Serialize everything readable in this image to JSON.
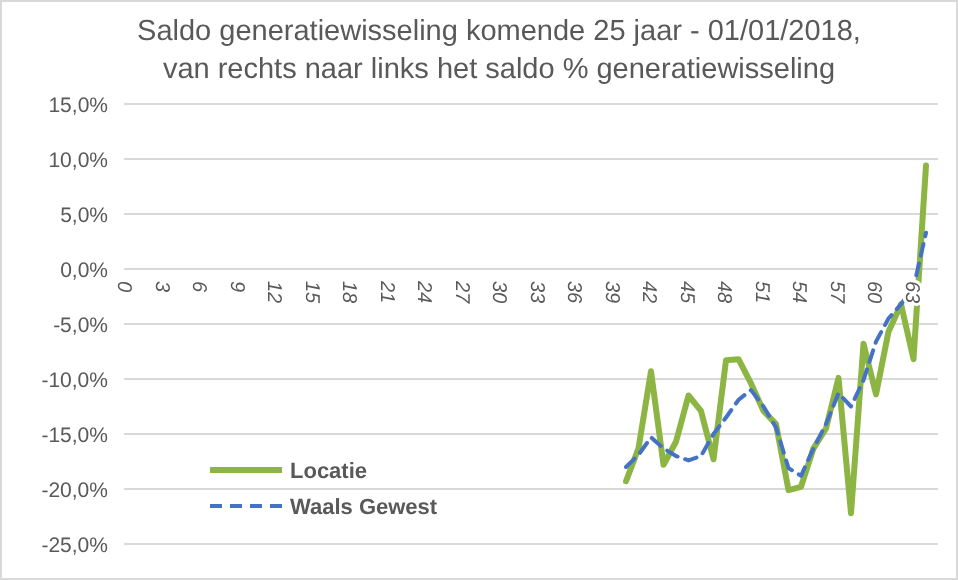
{
  "chart_data": {
    "type": "line",
    "title": "Saldo generatiewisseling komende 25 jaar - 01/01/2018,\nvan rechts naar links  het saldo % generatiewisseling",
    "categories": [
      "0",
      null,
      null,
      "3",
      null,
      null,
      "6",
      null,
      null,
      "9",
      null,
      null,
      "12",
      null,
      null,
      "15",
      null,
      null,
      "18",
      null,
      null,
      "21",
      null,
      null,
      "24",
      null,
      null,
      "27",
      null,
      null,
      "30",
      null,
      null,
      "33",
      null,
      null,
      "36",
      null,
      null,
      "39",
      null,
      null,
      "42",
      null,
      null,
      "45",
      null,
      null,
      "48",
      null,
      null,
      "51",
      null,
      null,
      "54",
      null,
      null,
      "57",
      null,
      null,
      "60",
      null,
      null,
      "63",
      null
    ],
    "series": [
      {
        "name": "Locatie",
        "color": "#8db543",
        "line_style": "solid",
        "values": [
          null,
          null,
          null,
          null,
          null,
          null,
          null,
          null,
          null,
          null,
          null,
          null,
          null,
          null,
          null,
          null,
          null,
          null,
          null,
          null,
          null,
          null,
          null,
          null,
          null,
          null,
          null,
          null,
          null,
          null,
          null,
          null,
          null,
          null,
          null,
          null,
          null,
          null,
          null,
          null,
          -19.3,
          -16.3,
          -9.3,
          -17.8,
          -15.7,
          -11.5,
          -12.9,
          -17.3,
          -8.3,
          -8.2,
          -10.4,
          -12.9,
          -14.1,
          -20.1,
          -19.8,
          -16.3,
          -14.5,
          -9.9,
          -22.2,
          -6.8,
          -11.4,
          -5.7,
          -3.2,
          -8.2,
          9.4
        ]
      },
      {
        "name": "Waals Gewest",
        "color": "#4472c4",
        "line_style": "dashed",
        "values": [
          null,
          null,
          null,
          null,
          null,
          null,
          null,
          null,
          null,
          null,
          null,
          null,
          null,
          null,
          null,
          null,
          null,
          null,
          null,
          null,
          null,
          null,
          null,
          null,
          null,
          null,
          null,
          null,
          null,
          null,
          null,
          null,
          null,
          null,
          null,
          null,
          null,
          null,
          null,
          null,
          -18.0,
          -16.9,
          -15.3,
          -16.3,
          -17.0,
          -17.4,
          -17.0,
          -15.0,
          -13.5,
          -11.9,
          -11.0,
          -12.5,
          -14.4,
          -18.1,
          -18.8,
          -16.3,
          -14.1,
          -11.3,
          -12.5,
          -10.1,
          -6.6,
          -4.5,
          -3.2,
          -1.7,
          3.3
        ]
      }
    ],
    "ylim": [
      -25,
      15
    ],
    "yticks": [
      {
        "value": -25,
        "label": "-25,0%"
      },
      {
        "value": -20,
        "label": "-20,0%"
      },
      {
        "value": -15,
        "label": "-15,0%"
      },
      {
        "value": -10,
        "label": "-10,0%"
      },
      {
        "value": -5,
        "label": "-5,0%"
      },
      {
        "value": 0,
        "label": "0,0%"
      },
      {
        "value": 5,
        "label": "5,0%"
      },
      {
        "value": 10,
        "label": "10,0%"
      },
      {
        "value": 15,
        "label": "15,0%"
      }
    ],
    "grid": "y",
    "legend": "bottom left"
  }
}
